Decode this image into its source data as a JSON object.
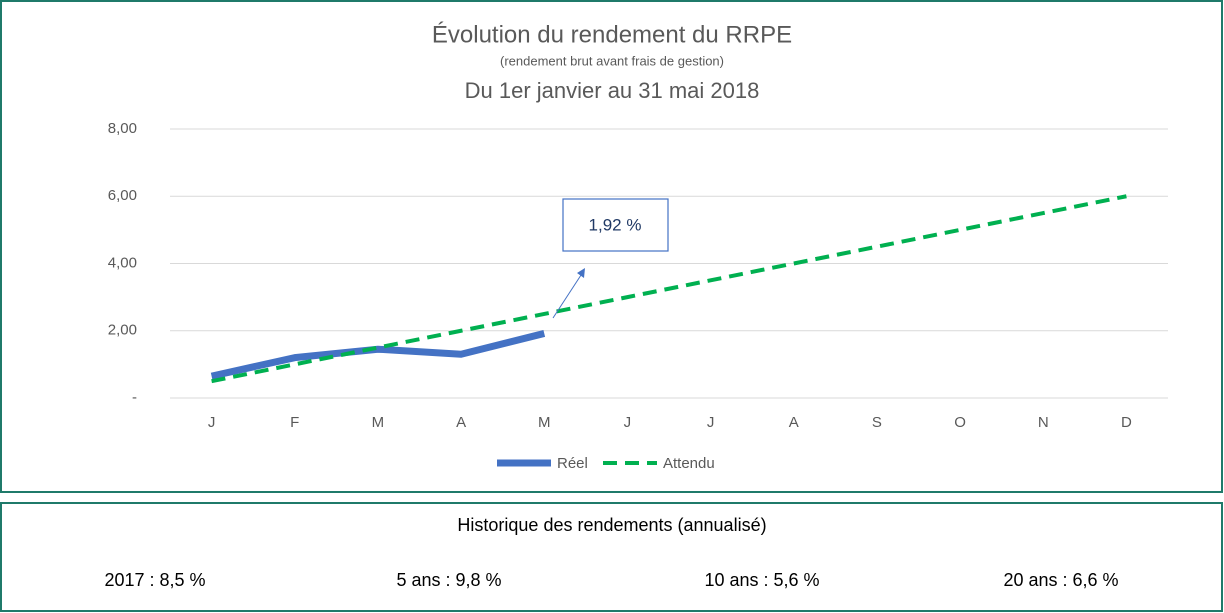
{
  "chart_data": {
    "type": "line",
    "title": "Évolution du rendement du RRPE",
    "subtitle": "(rendement brut avant frais de gestion)",
    "period": "Du 1er janvier au 31 mai 2018",
    "categories": [
      "J",
      "F",
      "M",
      "A",
      "M",
      "J",
      "J",
      "A",
      "S",
      "O",
      "N",
      "D"
    ],
    "series": [
      {
        "name": "Réel",
        "color": "#4472c4",
        "values": [
          0.65,
          1.2,
          1.45,
          1.3,
          1.92,
          null,
          null,
          null,
          null,
          null,
          null,
          null
        ]
      },
      {
        "name": "Attendu",
        "color": "#00b050",
        "dashed": true,
        "values": [
          0.5,
          1.0,
          1.5,
          2.0,
          2.5,
          3.0,
          3.5,
          4.0,
          4.5,
          5.0,
          5.5,
          6.0
        ]
      }
    ],
    "annotation": "1,92 %",
    "ylim": [
      0,
      8
    ],
    "yticks": [
      {
        "value": 0,
        "label": "-"
      },
      {
        "value": 2,
        "label": "2,00"
      },
      {
        "value": 4,
        "label": "4,00"
      },
      {
        "value": 6,
        "label": "6,00"
      },
      {
        "value": 8,
        "label": "8,00"
      }
    ],
    "grid": true,
    "legend": "bottom"
  },
  "history": {
    "title": "Historique des rendements (annualisé)",
    "items": [
      "2017 : 8,5 %",
      "5 ans : 9,8 %",
      "10 ans : 5,6 %",
      "20 ans : 6,6 %"
    ]
  }
}
